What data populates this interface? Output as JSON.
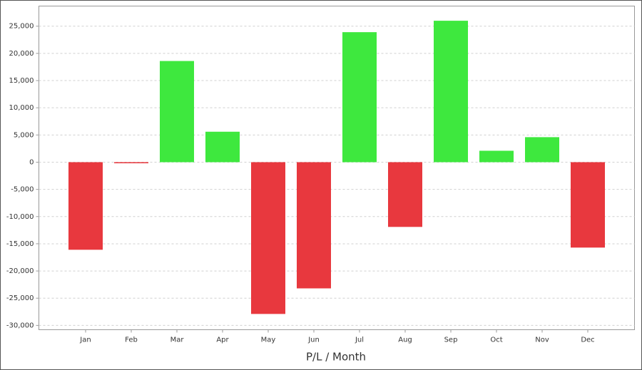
{
  "chart_data": {
    "type": "bar",
    "xlabel": "P/L / Month",
    "categories": [
      "Jan",
      "Feb",
      "Mar",
      "Apr",
      "May",
      "Jun",
      "Jul",
      "Aug",
      "Sep",
      "Oct",
      "Nov",
      "Dec"
    ],
    "values": [
      -16100,
      -200,
      18600,
      5600,
      -27900,
      -23200,
      23900,
      -11900,
      26000,
      2100,
      4600,
      -15700
    ],
    "positive_color": "#3ee83e",
    "negative_color": "#e8383e",
    "ylim": [
      -30800,
      28700
    ],
    "yticks": [
      {
        "value": -30000,
        "label": "-30,000"
      },
      {
        "value": -25000,
        "label": "-25,000"
      },
      {
        "value": -20000,
        "label": "-20,000"
      },
      {
        "value": -15000,
        "label": "-15,000"
      },
      {
        "value": -10000,
        "label": "-10,000"
      },
      {
        "value": -5000,
        "label": "-5,000"
      },
      0,
      {
        "value": 5000,
        "label": "5,000"
      },
      {
        "value": 10000,
        "label": "10,000"
      },
      {
        "value": 15000,
        "label": "15,000"
      },
      {
        "value": 20000,
        "label": "20,000"
      },
      {
        "value": 25000,
        "label": "25,000"
      }
    ],
    "grid": true
  }
}
